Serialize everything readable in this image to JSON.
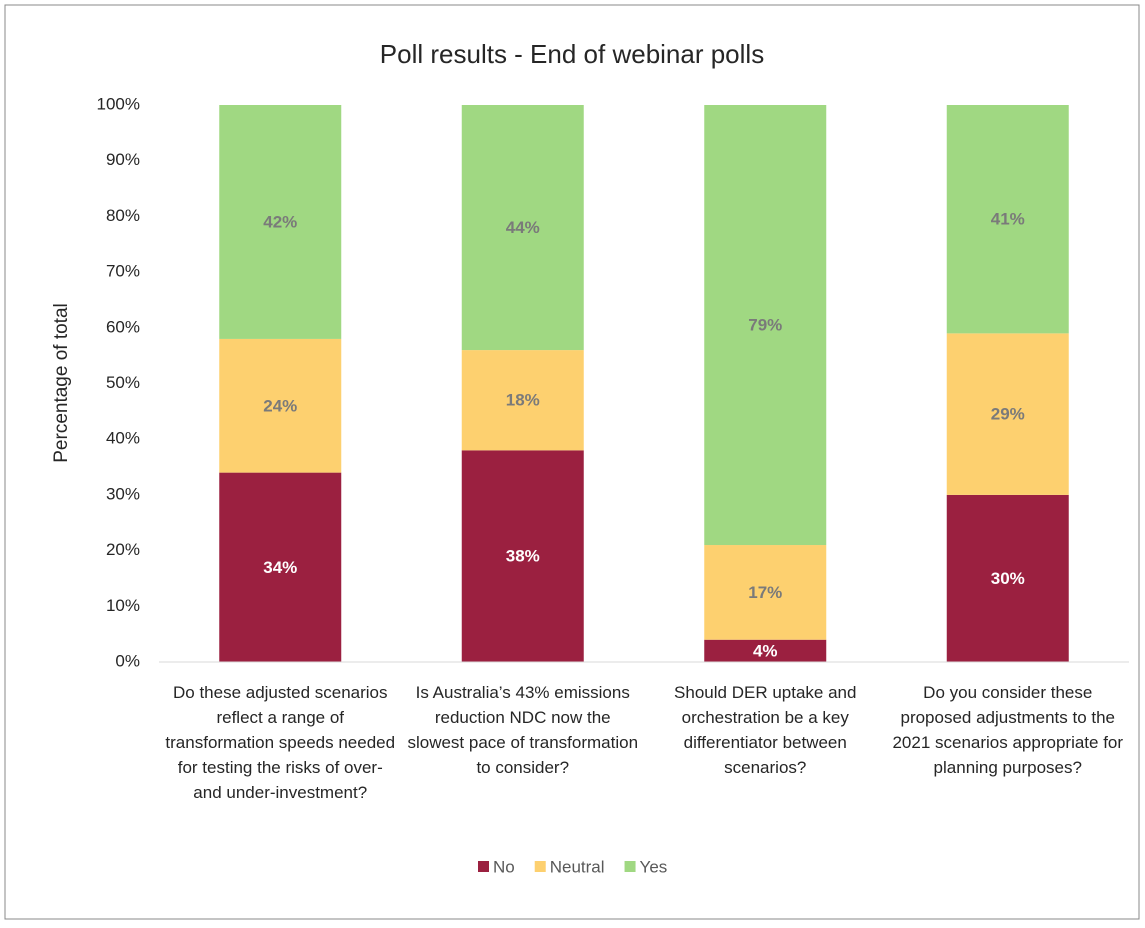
{
  "chart_data": {
    "type": "stacked_bar",
    "title": "Poll results - End of webinar polls",
    "y_label": "Percentage of total",
    "categories": [
      "Do these adjusted scenarios reflect a range of transformation speeds needed for testing the risks of over- and under-investment?",
      "Is Australia’s 43% emissions reduction NDC now the slowest pace of transformation to consider?",
      "Should DER uptake and orchestration be a key differentiator between scenarios?",
      "Do you consider these proposed adjustments to the 2021 scenarios appropriate for planning purposes?"
    ],
    "series": [
      {
        "name": "No",
        "color": "#9b2040",
        "values": [
          34,
          38,
          4,
          30
        ],
        "value_labels": [
          "34%",
          "38%",
          "4%",
          "30%"
        ]
      },
      {
        "name": "Neutral",
        "color": "#fdd06f",
        "values": [
          24,
          18,
          17,
          29
        ],
        "value_labels": [
          "24%",
          "18%",
          "17%",
          "29%"
        ]
      },
      {
        "name": "Yes",
        "color": "#a0d882",
        "values": [
          42,
          44,
          79,
          41
        ],
        "value_labels": [
          "42%",
          "44%",
          "79%",
          "41%"
        ]
      }
    ],
    "ylim": [
      0,
      100
    ],
    "yticks": [
      {
        "value": 0,
        "label": "0%"
      },
      {
        "value": 10,
        "label": "10%"
      },
      {
        "value": 20,
        "label": "20%"
      },
      {
        "value": 30,
        "label": "30%"
      },
      {
        "value": 40,
        "label": "40%"
      },
      {
        "value": 50,
        "label": "50%"
      },
      {
        "value": 60,
        "label": "60%"
      },
      {
        "value": 70,
        "label": "70%"
      },
      {
        "value": 80,
        "label": "80%"
      },
      {
        "value": 90,
        "label": "90%"
      },
      {
        "value": 100,
        "label": "100%"
      }
    ],
    "legend": "bottom"
  }
}
